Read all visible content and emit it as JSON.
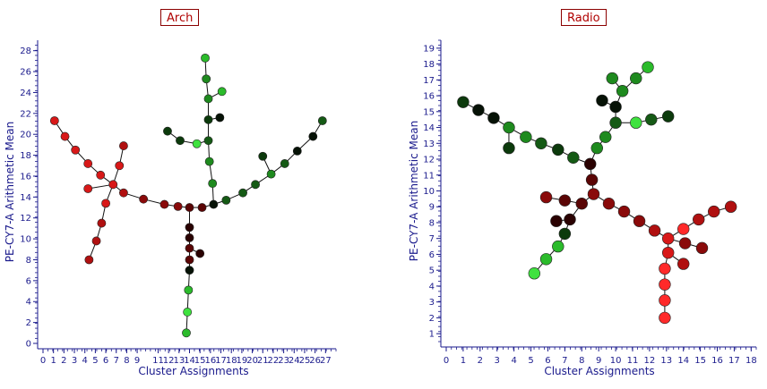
{
  "chart_data": [
    {
      "type": "scatter",
      "title": "Arch",
      "xlabel": "Cluster Assignments",
      "ylabel": "PE-CY7-A Arithmetic Mean",
      "xlim": [
        0,
        28
      ],
      "ylim": [
        0,
        29
      ],
      "xticks": [
        0,
        1,
        2,
        3,
        4,
        5,
        6,
        7,
        8,
        9,
        11,
        12,
        13,
        14,
        15,
        16,
        17,
        18,
        19,
        20,
        21,
        22,
        23,
        24,
        25,
        26,
        27
      ],
      "yticks": [
        0,
        2,
        4,
        6,
        8,
        10,
        12,
        14,
        16,
        18,
        20,
        22,
        24,
        26,
        28
      ],
      "color_palette": [
        "#ff2a2a",
        "#d81818",
        "#b01010",
        "#8a0a0a",
        "#5a0505",
        "#2a0202",
        "#061206",
        "#0c3a0c",
        "#155a15",
        "#1e8a1e",
        "#2bbb2b",
        "#3fe23f"
      ],
      "nodes": [
        {
          "id": "a0",
          "x": 1.1,
          "y": 21.3,
          "c": 1
        },
        {
          "id": "a1",
          "x": 2.1,
          "y": 19.8,
          "c": 1
        },
        {
          "id": "a2",
          "x": 3.1,
          "y": 18.5,
          "c": 1
        },
        {
          "id": "a3",
          "x": 4.3,
          "y": 17.2,
          "c": 1
        },
        {
          "id": "a4",
          "x": 5.5,
          "y": 16.1,
          "c": 1
        },
        {
          "id": "a5",
          "x": 6.7,
          "y": 15.2,
          "c": 1
        },
        {
          "id": "a6",
          "x": 7.3,
          "y": 17.0,
          "c": 1
        },
        {
          "id": "a7",
          "x": 7.7,
          "y": 18.9,
          "c": 2
        },
        {
          "id": "a8",
          "x": 4.3,
          "y": 14.8,
          "c": 1
        },
        {
          "id": "a9",
          "x": 6.0,
          "y": 13.4,
          "c": 1
        },
        {
          "id": "a10",
          "x": 5.6,
          "y": 11.5,
          "c": 2
        },
        {
          "id": "a11",
          "x": 5.1,
          "y": 9.8,
          "c": 2
        },
        {
          "id": "a12",
          "x": 4.4,
          "y": 8.0,
          "c": 2
        },
        {
          "id": "a13",
          "x": 7.7,
          "y": 14.4,
          "c": 2
        },
        {
          "id": "a14",
          "x": 9.6,
          "y": 13.8,
          "c": 3
        },
        {
          "id": "a15",
          "x": 11.6,
          "y": 13.3,
          "c": 3
        },
        {
          "id": "a16",
          "x": 12.9,
          "y": 13.1,
          "c": 3
        },
        {
          "id": "a17",
          "x": 14.0,
          "y": 13.0,
          "c": 4
        },
        {
          "id": "a18",
          "x": 15.2,
          "y": 13.0,
          "c": 4
        },
        {
          "id": "a19",
          "x": 16.3,
          "y": 13.3,
          "c": 6
        },
        {
          "id": "a20",
          "x": 17.5,
          "y": 13.7,
          "c": 8
        },
        {
          "id": "a21",
          "x": 19.1,
          "y": 14.4,
          "c": 8
        },
        {
          "id": "a22",
          "x": 20.3,
          "y": 15.2,
          "c": 8
        },
        {
          "id": "a23",
          "x": 21.8,
          "y": 16.2,
          "c": 9
        },
        {
          "id": "a24",
          "x": 21.0,
          "y": 17.9,
          "c": 7
        },
        {
          "id": "a25",
          "x": 23.1,
          "y": 17.2,
          "c": 8
        },
        {
          "id": "a26",
          "x": 24.3,
          "y": 18.4,
          "c": 6
        },
        {
          "id": "a27",
          "x": 25.8,
          "y": 19.8,
          "c": 6
        },
        {
          "id": "a28",
          "x": 26.7,
          "y": 21.3,
          "c": 8
        },
        {
          "id": "a29",
          "x": 16.2,
          "y": 15.3,
          "c": 9
        },
        {
          "id": "a30",
          "x": 15.9,
          "y": 17.4,
          "c": 9
        },
        {
          "id": "a31",
          "x": 15.8,
          "y": 19.4,
          "c": 8
        },
        {
          "id": "a32",
          "x": 15.8,
          "y": 21.4,
          "c": 7
        },
        {
          "id": "a33",
          "x": 16.9,
          "y": 21.6,
          "c": 6
        },
        {
          "id": "a34",
          "x": 15.8,
          "y": 23.4,
          "c": 9
        },
        {
          "id": "a35",
          "x": 17.1,
          "y": 24.1,
          "c": 10
        },
        {
          "id": "a36",
          "x": 15.6,
          "y": 25.3,
          "c": 9
        },
        {
          "id": "a37",
          "x": 15.5,
          "y": 27.3,
          "c": 10
        },
        {
          "id": "a38",
          "x": 14.7,
          "y": 19.1,
          "c": 11
        },
        {
          "id": "a39",
          "x": 13.1,
          "y": 19.4,
          "c": 7
        },
        {
          "id": "a40",
          "x": 11.9,
          "y": 20.3,
          "c": 7
        },
        {
          "id": "a41",
          "x": 14.0,
          "y": 11.1,
          "c": 5
        },
        {
          "id": "a42",
          "x": 14.0,
          "y": 10.1,
          "c": 5
        },
        {
          "id": "a43",
          "x": 14.0,
          "y": 9.1,
          "c": 4
        },
        {
          "id": "a44",
          "x": 15.0,
          "y": 8.6,
          "c": 5
        },
        {
          "id": "a45",
          "x": 14.0,
          "y": 8.0,
          "c": 4
        },
        {
          "id": "a46",
          "x": 14.0,
          "y": 7.0,
          "c": 6
        },
        {
          "id": "a47",
          "x": 13.9,
          "y": 5.1,
          "c": 10
        },
        {
          "id": "a48",
          "x": 13.8,
          "y": 3.0,
          "c": 11
        },
        {
          "id": "a49",
          "x": 13.7,
          "y": 1.0,
          "c": 10
        }
      ],
      "edges": [
        [
          "a0",
          "a1"
        ],
        [
          "a1",
          "a2"
        ],
        [
          "a2",
          "a3"
        ],
        [
          "a3",
          "a4"
        ],
        [
          "a4",
          "a5"
        ],
        [
          "a5",
          "a6"
        ],
        [
          "a6",
          "a7"
        ],
        [
          "a5",
          "a8"
        ],
        [
          "a5",
          "a9"
        ],
        [
          "a9",
          "a10"
        ],
        [
          "a10",
          "a11"
        ],
        [
          "a11",
          "a12"
        ],
        [
          "a5",
          "a13"
        ],
        [
          "a13",
          "a14"
        ],
        [
          "a14",
          "a15"
        ],
        [
          "a15",
          "a16"
        ],
        [
          "a16",
          "a17"
        ],
        [
          "a17",
          "a18"
        ],
        [
          "a18",
          "a19"
        ],
        [
          "a19",
          "a20"
        ],
        [
          "a20",
          "a21"
        ],
        [
          "a21",
          "a22"
        ],
        [
          "a22",
          "a23"
        ],
        [
          "a23",
          "a24"
        ],
        [
          "a23",
          "a25"
        ],
        [
          "a25",
          "a26"
        ],
        [
          "a26",
          "a27"
        ],
        [
          "a27",
          "a28"
        ],
        [
          "a19",
          "a29"
        ],
        [
          "a29",
          "a30"
        ],
        [
          "a30",
          "a31"
        ],
        [
          "a31",
          "a32"
        ],
        [
          "a32",
          "a33"
        ],
        [
          "a32",
          "a34"
        ],
        [
          "a34",
          "a35"
        ],
        [
          "a34",
          "a36"
        ],
        [
          "a36",
          "a37"
        ],
        [
          "a31",
          "a38"
        ],
        [
          "a38",
          "a39"
        ],
        [
          "a39",
          "a40"
        ],
        [
          "a17",
          "a41"
        ],
        [
          "a41",
          "a42"
        ],
        [
          "a42",
          "a43"
        ],
        [
          "a43",
          "a44"
        ],
        [
          "a43",
          "a45"
        ],
        [
          "a45",
          "a46"
        ],
        [
          "a46",
          "a47"
        ],
        [
          "a47",
          "a48"
        ],
        [
          "a48",
          "a49"
        ]
      ]
    },
    {
      "type": "scatter",
      "title": "Radio",
      "xlabel": "Cluster Assignments",
      "ylabel": "PE-CY7-A Arithmetic Mean",
      "xlim": [
        0,
        18.3
      ],
      "ylim": [
        0.5,
        19.5
      ],
      "xticks": [
        0,
        1,
        2,
        3,
        4,
        5,
        6,
        7,
        8,
        9,
        10,
        11,
        12,
        13,
        14,
        15,
        16,
        17,
        18
      ],
      "yticks": [
        1,
        2,
        3,
        4,
        5,
        6,
        7,
        8,
        9,
        10,
        11,
        12,
        13,
        14,
        15,
        16,
        17,
        18,
        19
      ],
      "color_palette": [
        "#ff2a2a",
        "#d81818",
        "#b01010",
        "#8a0a0a",
        "#5a0505",
        "#2a0202",
        "#061206",
        "#0c3a0c",
        "#155a15",
        "#1e8a1e",
        "#2bbb2b",
        "#3fe23f"
      ],
      "nodes": [
        {
          "id": "r0",
          "x": 1.0,
          "y": 15.6,
          "c": 7
        },
        {
          "id": "r1",
          "x": 1.9,
          "y": 15.1,
          "c": 6
        },
        {
          "id": "r2",
          "x": 2.8,
          "y": 14.6,
          "c": 6
        },
        {
          "id": "r3",
          "x": 3.7,
          "y": 14.0,
          "c": 9
        },
        {
          "id": "r4",
          "x": 3.7,
          "y": 12.7,
          "c": 7
        },
        {
          "id": "r5",
          "x": 4.7,
          "y": 13.4,
          "c": 9
        },
        {
          "id": "r6",
          "x": 5.6,
          "y": 13.0,
          "c": 8
        },
        {
          "id": "r7",
          "x": 6.6,
          "y": 12.6,
          "c": 7
        },
        {
          "id": "r8",
          "x": 7.5,
          "y": 12.1,
          "c": 8
        },
        {
          "id": "r9",
          "x": 8.5,
          "y": 11.7,
          "c": 5
        },
        {
          "id": "r10",
          "x": 8.9,
          "y": 12.7,
          "c": 9
        },
        {
          "id": "r11",
          "x": 9.4,
          "y": 13.4,
          "c": 9
        },
        {
          "id": "r12",
          "x": 10.0,
          "y": 14.3,
          "c": 8
        },
        {
          "id": "r13",
          "x": 10.0,
          "y": 15.3,
          "c": 6
        },
        {
          "id": "r14",
          "x": 9.2,
          "y": 15.7,
          "c": 6
        },
        {
          "id": "r15",
          "x": 10.4,
          "y": 16.3,
          "c": 9
        },
        {
          "id": "r16",
          "x": 9.8,
          "y": 17.1,
          "c": 9
        },
        {
          "id": "r17",
          "x": 11.2,
          "y": 17.1,
          "c": 9
        },
        {
          "id": "r18",
          "x": 11.9,
          "y": 17.8,
          "c": 10
        },
        {
          "id": "r19",
          "x": 11.2,
          "y": 14.3,
          "c": 11
        },
        {
          "id": "r20",
          "x": 12.1,
          "y": 14.5,
          "c": 8
        },
        {
          "id": "r21",
          "x": 13.1,
          "y": 14.7,
          "c": 7
        },
        {
          "id": "r22",
          "x": 8.6,
          "y": 10.7,
          "c": 4
        },
        {
          "id": "r23",
          "x": 8.7,
          "y": 9.8,
          "c": 3
        },
        {
          "id": "r24",
          "x": 8.0,
          "y": 9.2,
          "c": 4
        },
        {
          "id": "r25",
          "x": 7.0,
          "y": 9.4,
          "c": 4
        },
        {
          "id": "r26",
          "x": 5.9,
          "y": 9.6,
          "c": 3
        },
        {
          "id": "r27",
          "x": 7.3,
          "y": 8.2,
          "c": 5
        },
        {
          "id": "r28",
          "x": 6.5,
          "y": 8.1,
          "c": 5
        },
        {
          "id": "r29",
          "x": 7.0,
          "y": 7.3,
          "c": 7
        },
        {
          "id": "r30",
          "x": 6.6,
          "y": 6.5,
          "c": 10
        },
        {
          "id": "r31",
          "x": 5.9,
          "y": 5.7,
          "c": 10
        },
        {
          "id": "r32",
          "x": 5.2,
          "y": 4.8,
          "c": 11
        },
        {
          "id": "r33",
          "x": 9.6,
          "y": 9.2,
          "c": 3
        },
        {
          "id": "r34",
          "x": 10.5,
          "y": 8.7,
          "c": 3
        },
        {
          "id": "r35",
          "x": 11.4,
          "y": 8.1,
          "c": 3
        },
        {
          "id": "r36",
          "x": 12.3,
          "y": 7.5,
          "c": 2
        },
        {
          "id": "r37",
          "x": 13.1,
          "y": 7.0,
          "c": 1
        },
        {
          "id": "r38",
          "x": 14.0,
          "y": 7.6,
          "c": 0
        },
        {
          "id": "r39",
          "x": 14.9,
          "y": 8.2,
          "c": 2
        },
        {
          "id": "r40",
          "x": 15.8,
          "y": 8.7,
          "c": 2
        },
        {
          "id": "r41",
          "x": 16.8,
          "y": 9.0,
          "c": 2
        },
        {
          "id": "r42",
          "x": 14.1,
          "y": 6.7,
          "c": 3
        },
        {
          "id": "r43",
          "x": 15.1,
          "y": 6.4,
          "c": 3
        },
        {
          "id": "r44",
          "x": 13.1,
          "y": 6.1,
          "c": 1
        },
        {
          "id": "r45",
          "x": 14.0,
          "y": 5.4,
          "c": 2
        },
        {
          "id": "r46",
          "x": 12.9,
          "y": 5.1,
          "c": 0
        },
        {
          "id": "r47",
          "x": 12.9,
          "y": 4.1,
          "c": 0
        },
        {
          "id": "r48",
          "x": 12.9,
          "y": 3.1,
          "c": 0
        },
        {
          "id": "r49",
          "x": 12.9,
          "y": 2.0,
          "c": 0
        }
      ],
      "edges": [
        [
          "r0",
          "r1"
        ],
        [
          "r1",
          "r2"
        ],
        [
          "r2",
          "r3"
        ],
        [
          "r3",
          "r4"
        ],
        [
          "r3",
          "r5"
        ],
        [
          "r5",
          "r6"
        ],
        [
          "r6",
          "r7"
        ],
        [
          "r7",
          "r8"
        ],
        [
          "r8",
          "r9"
        ],
        [
          "r9",
          "r10"
        ],
        [
          "r10",
          "r11"
        ],
        [
          "r11",
          "r12"
        ],
        [
          "r12",
          "r13"
        ],
        [
          "r13",
          "r14"
        ],
        [
          "r13",
          "r15"
        ],
        [
          "r15",
          "r16"
        ],
        [
          "r15",
          "r17"
        ],
        [
          "r17",
          "r18"
        ],
        [
          "r12",
          "r19"
        ],
        [
          "r19",
          "r20"
        ],
        [
          "r20",
          "r21"
        ],
        [
          "r9",
          "r22"
        ],
        [
          "r22",
          "r23"
        ],
        [
          "r23",
          "r24"
        ],
        [
          "r24",
          "r25"
        ],
        [
          "r25",
          "r26"
        ],
        [
          "r24",
          "r27"
        ],
        [
          "r27",
          "r28"
        ],
        [
          "r27",
          "r29"
        ],
        [
          "r29",
          "r30"
        ],
        [
          "r30",
          "r31"
        ],
        [
          "r31",
          "r32"
        ],
        [
          "r23",
          "r33"
        ],
        [
          "r33",
          "r34"
        ],
        [
          "r34",
          "r35"
        ],
        [
          "r35",
          "r36"
        ],
        [
          "r36",
          "r37"
        ],
        [
          "r37",
          "r38"
        ],
        [
          "r38",
          "r39"
        ],
        [
          "r39",
          "r40"
        ],
        [
          "r40",
          "r41"
        ],
        [
          "r37",
          "r42"
        ],
        [
          "r42",
          "r43"
        ],
        [
          "r37",
          "r44"
        ],
        [
          "r44",
          "r45"
        ],
        [
          "r44",
          "r46"
        ],
        [
          "r46",
          "r47"
        ],
        [
          "r47",
          "r48"
        ],
        [
          "r48",
          "r49"
        ]
      ]
    }
  ]
}
